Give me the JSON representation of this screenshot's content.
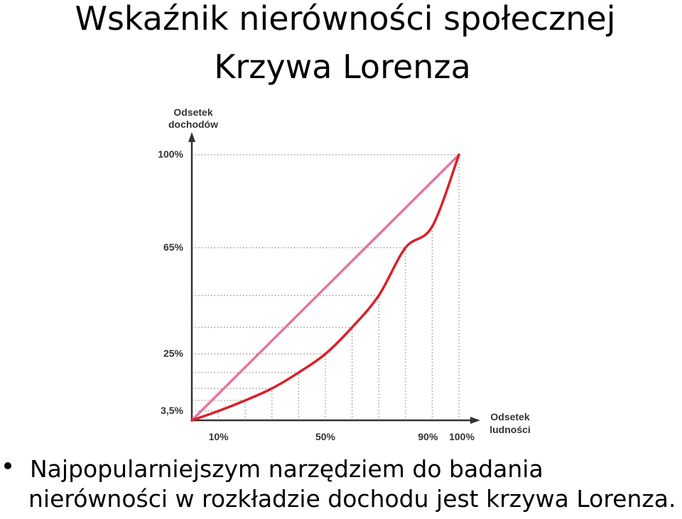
{
  "slide": {
    "title": "Wskaźnik nierówności społecznej",
    "subtitle": "Krzywa Lorenza",
    "bullet_line1": "Najpopularniejszym narzędziem do badania",
    "bullet_line2": "nierówności w rozkładzie dochodu jest krzywa Lorenza."
  },
  "chart_data": {
    "type": "line",
    "ylabel_line1": "Odsetek",
    "ylabel_line2": "dochodów",
    "xlabel_line1": "Odsetek",
    "xlabel_line2": "ludności",
    "xlim": [
      0,
      100
    ],
    "ylim": [
      0,
      100
    ],
    "x_tick_labels": [
      {
        "value": 10,
        "label": "10%"
      },
      {
        "value": 50,
        "label": "50%"
      },
      {
        "value": 90,
        "label": "90%"
      },
      {
        "value": 100,
        "label": "100%"
      }
    ],
    "y_tick_labels": [
      {
        "value": 3.5,
        "label": "3,5%"
      },
      {
        "value": 25,
        "label": "25%"
      },
      {
        "value": 65,
        "label": "65%"
      },
      {
        "value": 100,
        "label": "100%"
      }
    ],
    "grid_x": [
      10,
      20,
      30,
      40,
      50,
      60,
      70,
      80,
      90,
      100
    ],
    "grid_y": [
      3.5,
      7.5,
      12,
      18,
      25,
      35,
      47,
      65,
      100
    ],
    "series": [
      {
        "values": [
          [
            0,
            0
          ],
          [
            100,
            100
          ]
        ],
        "color": "#e8739f"
      },
      {
        "values": [
          [
            0,
            0
          ],
          [
            10,
            3.5
          ],
          [
            20,
            7.5
          ],
          [
            30,
            12
          ],
          [
            40,
            18
          ],
          [
            50,
            25
          ],
          [
            60,
            35
          ],
          [
            70,
            47
          ],
          [
            80,
            65
          ],
          [
            90,
            73
          ],
          [
            100,
            100
          ]
        ],
        "color": "#d9202a"
      }
    ],
    "grid": true,
    "grid_style": "dotted",
    "colors": {
      "axis": "#333333",
      "grid": "#888888"
    }
  }
}
